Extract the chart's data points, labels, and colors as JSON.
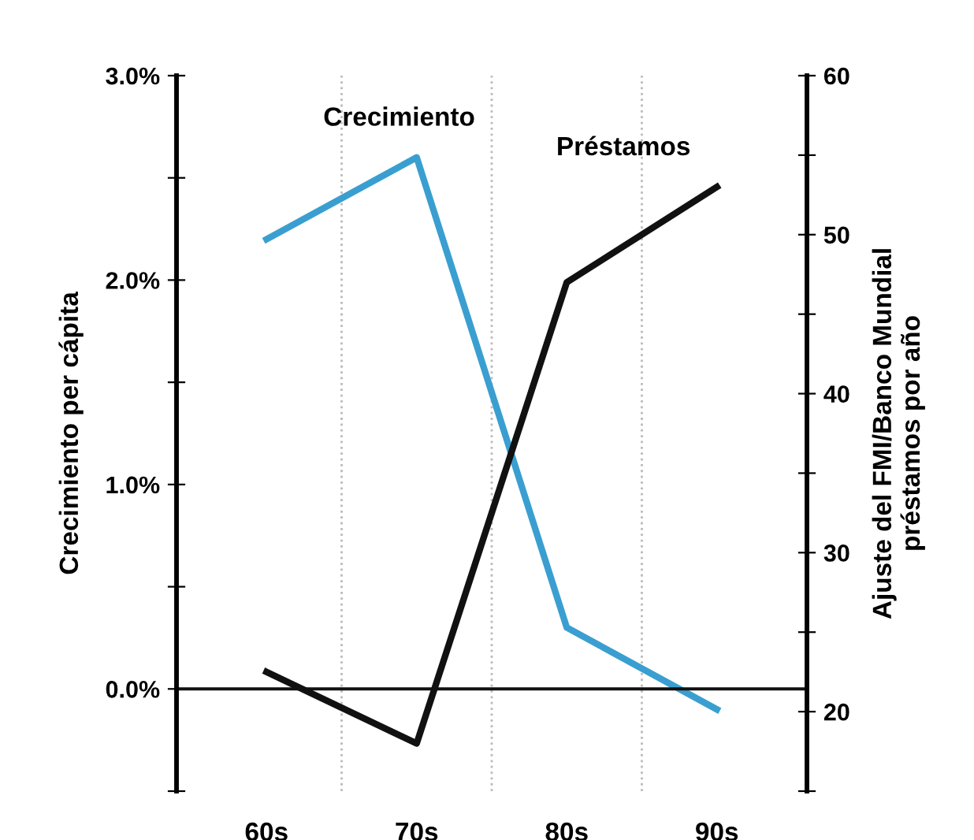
{
  "chart_data": {
    "type": "line",
    "ylabel": "Crecimiento per cápita",
    "y2label": "Ajuste del FMI/Banco Mundial\npréstamos por año",
    "categories": [
      "60s",
      "70s",
      "80s",
      "90s"
    ],
    "series": [
      {
        "name": "Crecimiento",
        "color": "#3a9fd0",
        "values": [
          2.2,
          2.6,
          0.3,
          -0.1
        ]
      },
      {
        "name": "Préstamos",
        "color": "#111111",
        "values": [
          22.5,
          18,
          47,
          53
        ],
        "axis": "y2"
      }
    ],
    "ylim": [
      -0.5,
      3.0
    ],
    "yticks": [
      {
        "value": -0.5,
        "label": null
      },
      {
        "value": 0.0,
        "label": "0.0%"
      },
      {
        "value": 0.5,
        "label": null
      },
      {
        "value": 1.0,
        "label": "1.0%"
      },
      {
        "value": 1.5,
        "label": null
      },
      {
        "value": 2.0,
        "label": "2.0%"
      },
      {
        "value": 2.5,
        "label": null
      },
      {
        "value": 3.0,
        "label": "3.0%"
      }
    ],
    "y2lim": [
      15,
      60
    ],
    "y2ticks": [
      {
        "value": 15,
        "label": null
      },
      20,
      {
        "value": 25,
        "label": null
      },
      30,
      {
        "value": 35,
        "label": null
      },
      40,
      {
        "value": 45,
        "label": null
      },
      50,
      {
        "value": 55,
        "label": null
      },
      60
    ],
    "ref_lines": [
      {
        "axis": "y",
        "value": 0,
        "color": "#111111"
      }
    ],
    "marker": "none",
    "line_style": "solid"
  }
}
